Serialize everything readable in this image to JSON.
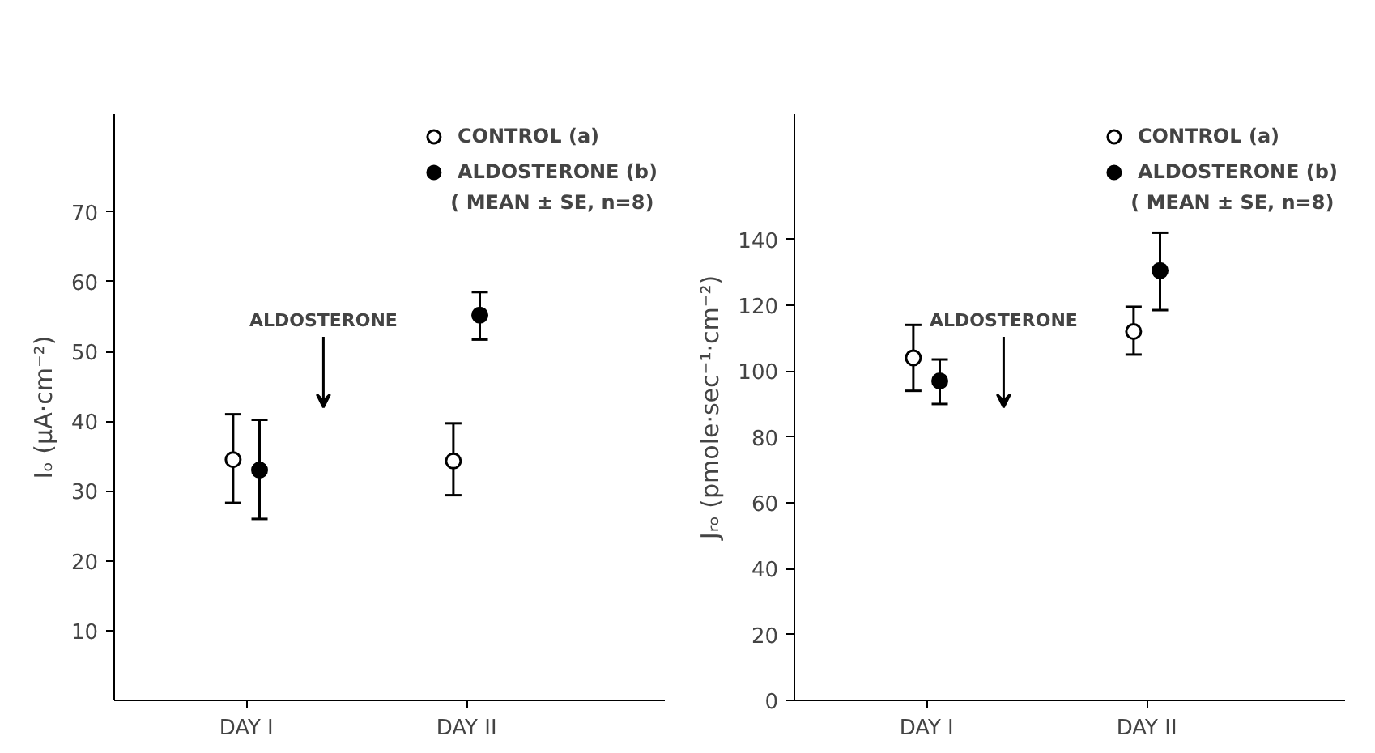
{
  "chart_data": [
    {
      "type": "scatter",
      "ylabel": "Iₒ (μA·cm⁻²)",
      "categories": [
        "DAY I",
        "DAY II"
      ],
      "ylim": [
        0,
        84
      ],
      "yticks": [
        10,
        20,
        30,
        40,
        50,
        60,
        70
      ],
      "grid": false,
      "legend": "top right",
      "series": [
        {
          "name": "CONTROL (a)",
          "color": "#000000",
          "marker": "circle_open",
          "values": [
            34.5,
            34.3
          ],
          "errors": [
            [
              28.3,
              41
            ],
            [
              29.4,
              39.7
            ]
          ]
        },
        {
          "name": "ALDOSTERONE (b)",
          "color": "#000000",
          "marker": "circle",
          "values": [
            33,
            55.2
          ],
          "errors": [
            [
              26,
              40.2
            ],
            [
              51.7,
              58.5
            ]
          ]
        }
      ],
      "annotations": [
        "( MEAN ± SE, n=8)",
        "ALDOSTERONE"
      ]
    },
    {
      "type": "scatter",
      "ylabel": "Jᵣₒ (pmole·sec⁻¹·cm⁻²)",
      "categories": [
        "DAY I",
        "DAY II"
      ],
      "ylim": [
        0,
        178
      ],
      "yticks": [
        0,
        20,
        40,
        60,
        80,
        100,
        120,
        140
      ],
      "grid": false,
      "legend": "top right",
      "series": [
        {
          "name": "CONTROL (a)",
          "color": "#000000",
          "marker": "circle_open",
          "values": [
            104,
            112
          ],
          "errors": [
            [
              94,
              114
            ],
            [
              105,
              119.5
            ]
          ]
        },
        {
          "name": "ALDOSTERONE (b)",
          "color": "#000000",
          "marker": "circle",
          "values": [
            97,
            130.5
          ],
          "errors": [
            [
              90,
              103.5
            ],
            [
              118.5,
              142
            ]
          ]
        }
      ],
      "annotations": [
        "( MEAN ± SE, n=8)",
        "ALDOSTERONE"
      ]
    }
  ]
}
